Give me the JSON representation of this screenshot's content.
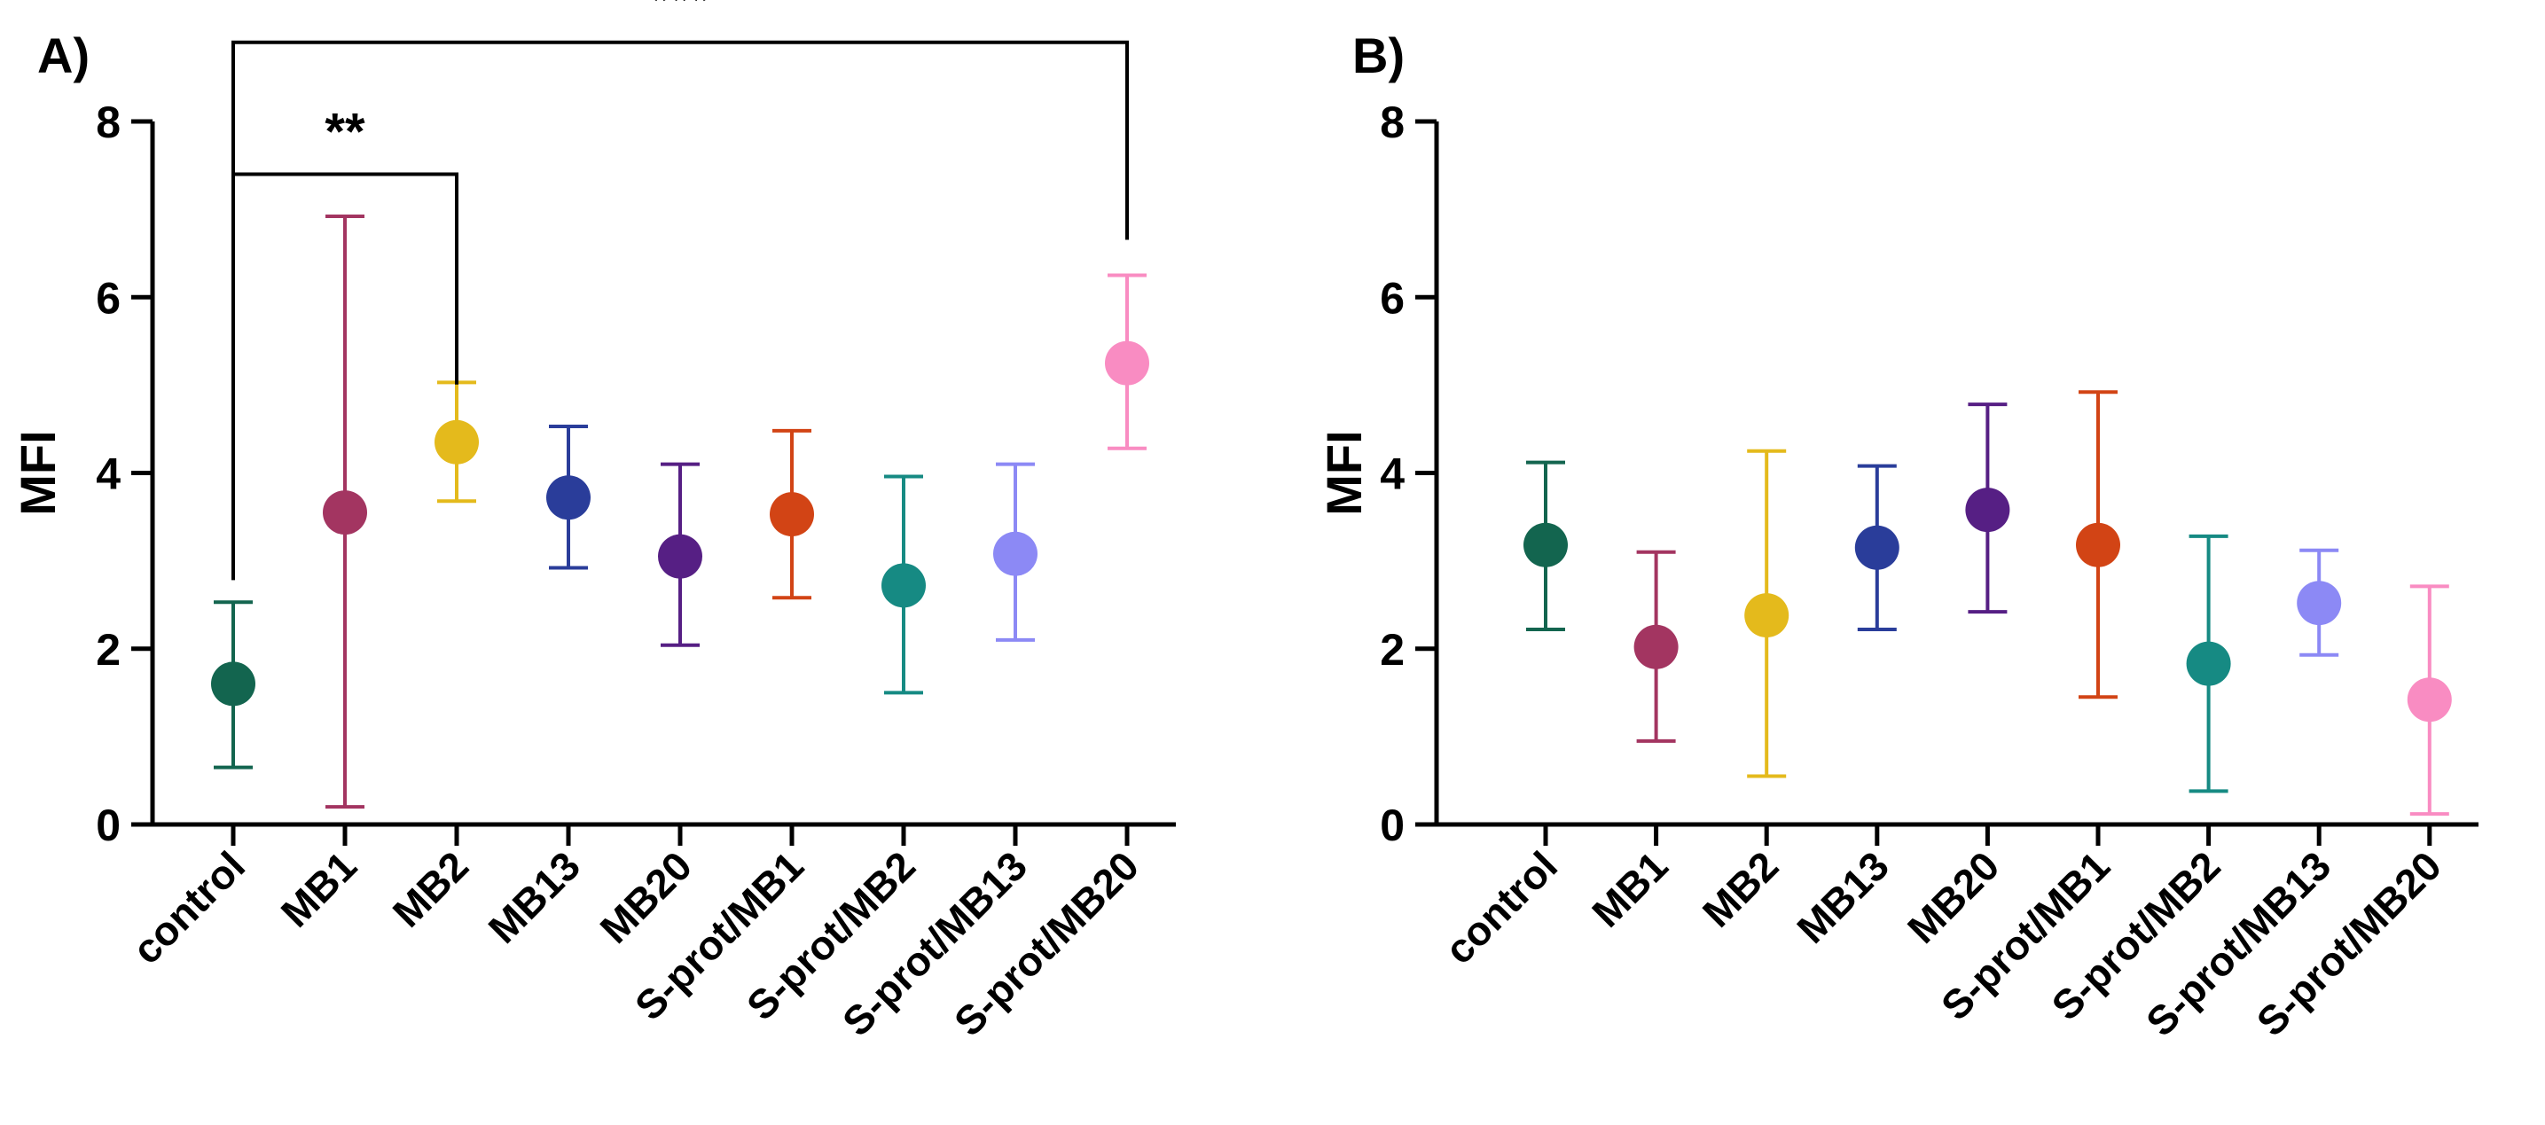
{
  "chart_data": [
    {
      "type": "scatter",
      "panel_label": "A)",
      "ylabel": "MFI",
      "ylim": [
        0,
        8
      ],
      "yticks": [
        0,
        2,
        4,
        6,
        8
      ],
      "grid": false,
      "categories": [
        "control",
        "MB1",
        "MB2",
        "MB13",
        "MB20",
        "S-prot/MB1",
        "S-prot/MB2",
        "S-prot/MB13",
        "S-prot/MB20"
      ],
      "means": [
        1.6,
        3.55,
        4.35,
        3.72,
        3.05,
        3.53,
        2.72,
        3.08,
        5.25
      ],
      "lower": [
        0.65,
        0.2,
        3.68,
        2.92,
        2.04,
        2.58,
        1.5,
        2.1,
        4.28
      ],
      "upper": [
        2.53,
        6.92,
        5.03,
        4.53,
        4.1,
        4.48,
        3.96,
        4.1,
        6.25
      ],
      "significance": [
        {
          "from": "control",
          "to": "MB2",
          "label": "**"
        },
        {
          "from": "control",
          "to": "S-prot/MB20",
          "label": "***"
        }
      ]
    },
    {
      "type": "scatter",
      "panel_label": "B)",
      "ylabel": "MFI",
      "ylim": [
        0,
        8
      ],
      "yticks": [
        0,
        2,
        4,
        6,
        8
      ],
      "grid": false,
      "categories": [
        "control",
        "MB1",
        "MB2",
        "MB13",
        "MB20",
        "S-prot/MB1",
        "S-prot/MB2",
        "S-prot/MB13",
        "S-prot/MB20"
      ],
      "means": [
        3.18,
        2.02,
        2.38,
        3.15,
        3.58,
        3.18,
        1.83,
        2.52,
        1.42
      ],
      "lower": [
        2.22,
        0.95,
        0.55,
        2.22,
        2.42,
        1.45,
        0.38,
        1.93,
        0.12
      ],
      "upper": [
        4.12,
        3.1,
        4.25,
        4.08,
        4.78,
        4.92,
        3.28,
        3.12,
        2.71
      ],
      "significance": []
    }
  ],
  "colors": {
    "series": [
      "#13654f",
      "#a33561",
      "#e4ba1c",
      "#2a3d9a",
      "#561f84",
      "#d24415",
      "#168a83",
      "#8c89f5",
      "#f98cc2"
    ],
    "axis": "#000000"
  }
}
